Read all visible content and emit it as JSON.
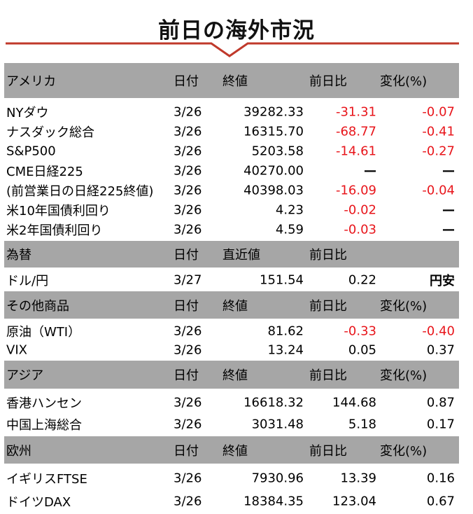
{
  "title": "前日の海外市況",
  "sections": [
    {
      "id": "america",
      "headers": [
        "アメリカ",
        "日付",
        "終値",
        "前日比",
        "変化(%)"
      ],
      "rows": [
        {
          "name": "NYダウ",
          "date": "3/26",
          "value": "39282.33",
          "diff": "-31.31",
          "pct": "-0.07",
          "diff_neg": true,
          "pct_neg": true
        },
        {
          "name": "ナスダック総合",
          "date": "3/26",
          "value": "16315.70",
          "diff": "-68.77",
          "pct": "-0.41",
          "diff_neg": true,
          "pct_neg": true
        },
        {
          "name": "S&P500",
          "date": "3/26",
          "value": "5203.58",
          "diff": "-14.61",
          "pct": "-0.27",
          "diff_neg": true,
          "pct_neg": true
        },
        {
          "name": "CME日経225",
          "date": "3/26",
          "value": "40270.00",
          "diff": "—",
          "pct": "—",
          "diff_neg": false,
          "pct_neg": false
        },
        {
          "name": "(前営業日の日経225終値)",
          "date": "3/26",
          "value": "40398.03",
          "diff": "-16.09",
          "pct": "-0.04",
          "diff_neg": true,
          "pct_neg": true
        },
        {
          "name": "米10年国債利回り",
          "date": "3/26",
          "value": "4.23",
          "diff": "-0.02",
          "pct": "—",
          "diff_neg": true,
          "pct_neg": false
        },
        {
          "name": "米2年国債利回り",
          "date": "3/26",
          "value": "4.59",
          "diff": "-0.03",
          "pct": "—",
          "diff_neg": true,
          "pct_neg": false
        }
      ]
    },
    {
      "id": "fx",
      "headers": [
        "為替",
        "日付",
        "直近値",
        "前日比",
        ""
      ],
      "rows": [
        {
          "name": "ドル/円",
          "date": "3/27",
          "value": "151.54",
          "diff": "0.22",
          "pct": "円安",
          "diff_neg": false,
          "pct_neg": false
        }
      ]
    },
    {
      "id": "commodities",
      "headers": [
        "その他商品",
        "日付",
        "終値",
        "前日比",
        "変化(%)"
      ],
      "rows": [
        {
          "name": "原油（WTI）",
          "date": "3/26",
          "value": "81.62",
          "diff": "-0.33",
          "pct": "-0.40",
          "diff_neg": true,
          "pct_neg": true
        },
        {
          "name": "VIX",
          "date": "3/26",
          "value": "13.24",
          "diff": "0.05",
          "pct": "0.37",
          "diff_neg": false,
          "pct_neg": false
        }
      ]
    },
    {
      "id": "asia",
      "headers": [
        "アジア",
        "日付",
        "終値",
        "前日比",
        "変化(%)"
      ],
      "rows": [
        {
          "name": "香港ハンセン",
          "date": "3/26",
          "value": "16618.32",
          "diff": "144.68",
          "pct": "0.87",
          "diff_neg": false,
          "pct_neg": false
        },
        {
          "name": "中国上海総合",
          "date": "3/26",
          "value": "3031.48",
          "diff": "5.18",
          "pct": "0.17",
          "diff_neg": false,
          "pct_neg": false
        }
      ]
    },
    {
      "id": "europe",
      "headers": [
        "欧州",
        "日付",
        "終値",
        "前日比",
        "変化(%)"
      ],
      "rows": [
        {
          "name": "イギリスFTSE",
          "date": "3/26",
          "value": "7930.96",
          "diff": "13.39",
          "pct": "0.16",
          "diff_neg": false,
          "pct_neg": false
        },
        {
          "name": "ドイツDAX",
          "date": "3/26",
          "value": "18384.35",
          "diff": "123.04",
          "pct": "0.67",
          "diff_neg": false,
          "pct_neg": false
        }
      ]
    }
  ],
  "colors": {
    "header_bg": "#a6a6a6",
    "negative": "#e8151b",
    "accent_line": "#c0392b"
  }
}
